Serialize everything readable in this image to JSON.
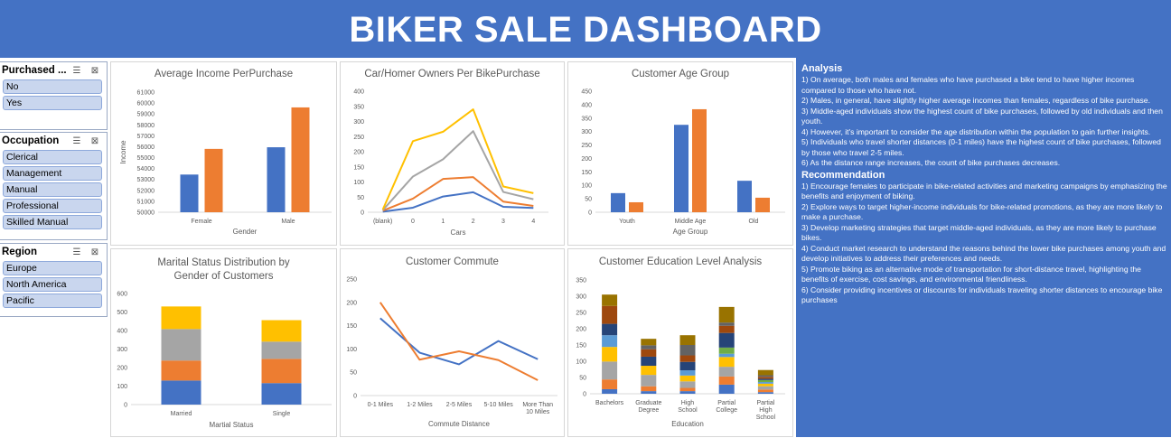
{
  "header": {
    "title": "BIKER SALE DASHBOARD"
  },
  "slicers": {
    "purchased": {
      "title": "Purchased ...",
      "items": [
        "No",
        "Yes"
      ]
    },
    "occupation": {
      "title": "Occupation",
      "items": [
        "Clerical",
        "Management",
        "Manual",
        "Professional",
        "Skilled Manual"
      ]
    },
    "region": {
      "title": "Region",
      "items": [
        "Europe",
        "North America",
        "Pacific"
      ]
    }
  },
  "colors": {
    "blue": "#4472c4",
    "orange": "#ed7d31",
    "gray": "#a5a5a5",
    "gold": "#ffc000"
  },
  "charts": {
    "income": {
      "title": "Average Income PerPurchase",
      "xlabel": "Gender",
      "ylabel": "Income"
    },
    "cars": {
      "title": "Car/Homer Owners Per BikePurchase",
      "xlabel": "Cars",
      "ylabel": ""
    },
    "age": {
      "title": "Customer Age Group",
      "xlabel": "Age Group",
      "ylabel": ""
    },
    "marital": {
      "title": "Marital Status Distribution by Gender of Customers",
      "xlabel": "Martial Status",
      "ylabel": ""
    },
    "commute": {
      "title": "Customer Commute",
      "xlabel": "Commute Distance",
      "ylabel": ""
    },
    "education": {
      "title": "Customer Education Level Analysis",
      "xlabel": "Education",
      "ylabel": ""
    }
  },
  "chart_data": [
    {
      "id": "income",
      "type": "bar",
      "categories": [
        "Female",
        "Male"
      ],
      "series": [
        {
          "values": [
            53450,
            55950
          ]
        },
        {
          "values": [
            55800,
            59600
          ]
        }
      ],
      "ylim": [
        50000,
        61000
      ],
      "yticks": [
        50000,
        51000,
        52000,
        53000,
        54000,
        55000,
        56000,
        57000,
        58000,
        59000,
        60000,
        61000
      ]
    },
    {
      "id": "cars",
      "type": "line",
      "categories": [
        "(blank)",
        "0",
        "1",
        "2",
        "3",
        "4"
      ],
      "series": [
        {
          "values": [
            2,
            15,
            52,
            66,
            18,
            14
          ]
        },
        {
          "values": [
            5,
            45,
            110,
            116,
            35,
            21
          ]
        },
        {
          "values": [
            7,
            118,
            175,
            268,
            67,
            43
          ]
        },
        {
          "values": [
            9,
            235,
            266,
            340,
            85,
            63
          ]
        }
      ],
      "ylim": [
        0,
        400
      ],
      "yticks": [
        0,
        50,
        100,
        150,
        200,
        250,
        300,
        350,
        400
      ]
    },
    {
      "id": "age",
      "type": "bar",
      "categories": [
        "Youth",
        "Middle Age",
        "Old"
      ],
      "series": [
        {
          "values": [
            71,
            325,
            117
          ]
        },
        {
          "values": [
            37,
            383,
            54
          ]
        }
      ],
      "ylim": [
        0,
        450
      ],
      "yticks": [
        0,
        50,
        100,
        150,
        200,
        250,
        300,
        350,
        400,
        450
      ]
    },
    {
      "id": "marital",
      "type": "bar",
      "stacked": true,
      "categories": [
        "Married",
        "Single"
      ],
      "series": [
        {
          "values": [
            130,
            116
          ]
        },
        {
          "values": [
            108,
            131
          ]
        },
        {
          "values": [
            170,
            93
          ]
        },
        {
          "values": [
            122,
            116
          ]
        }
      ],
      "ylim": [
        0,
        600
      ],
      "yticks": [
        0,
        100,
        200,
        300,
        400,
        500,
        600
      ]
    },
    {
      "id": "commute",
      "type": "line",
      "categories": [
        "0-1 Miles",
        "1-2 Miles",
        "2-5 Miles",
        "5-10 Miles",
        "More Than 10 Miles"
      ],
      "series": [
        {
          "values": [
            166,
            92,
            67,
            117,
            78
          ]
        },
        {
          "values": [
            200,
            77,
            95,
            76,
            33
          ]
        }
      ],
      "ylim": [
        0,
        250
      ],
      "yticks": [
        0,
        50,
        100,
        150,
        200,
        250
      ]
    },
    {
      "id": "education",
      "type": "bar",
      "stacked": true,
      "categories": [
        "Bachelors",
        "Graduate Degree",
        "High School",
        "Partial College",
        "Partial High School"
      ],
      "series": [
        {
          "values": [
            14,
            8,
            8,
            28,
            5
          ],
          "color": "#4472c4"
        },
        {
          "values": [
            30,
            15,
            10,
            25,
            8
          ],
          "color": "#ed7d31"
        },
        {
          "values": [
            55,
            35,
            20,
            30,
            10
          ],
          "color": "#a5a5a5"
        },
        {
          "values": [
            45,
            28,
            18,
            30,
            8
          ],
          "color": "#ffc000"
        },
        {
          "values": [
            36,
            0,
            16,
            10,
            5
          ],
          "color": "#5b9bd5"
        },
        {
          "values": [
            0,
            0,
            0,
            19,
            6
          ],
          "color": "#70ad47"
        },
        {
          "values": [
            35,
            28,
            26,
            45,
            4
          ],
          "color": "#264478"
        },
        {
          "values": [
            55,
            23,
            20,
            22,
            6
          ],
          "color": "#9e480e"
        },
        {
          "values": [
            0,
            12,
            32,
            10,
            5
          ],
          "color": "#636363"
        },
        {
          "values": [
            35,
            20,
            30,
            48,
            16
          ],
          "color": "#997300"
        }
      ],
      "ylim": [
        0,
        350
      ],
      "yticks": [
        0,
        50,
        100,
        150,
        200,
        250,
        300,
        350
      ]
    }
  ],
  "analysis": {
    "title": "Analysis",
    "lines": [
      "1) On average, both males and females who have purchased a bike tend to have higher incomes compared to those who have not.",
      "2) Males, in general, have slightly higher average incomes than females, regardless of bike purchase.",
      "3) Middle-aged individuals show the highest count of bike purchases, followed by old individuals and then youth.",
      "4) However, it's important to consider the age distribution within the population to gain further insights.",
      "5) Individuals who travel shorter distances (0-1 miles) have the highest count of bike purchases, followed by those who travel 2-5 miles.",
      "6) As the distance range increases, the count of bike purchases decreases."
    ]
  },
  "recommendation": {
    "title": "Recommendation",
    "lines": [
      "1) Encourage females to participate in bike-related activities and marketing campaigns by emphasizing the benefits and enjoyment of biking.",
      "2) Explore ways to target higher-income individuals for bike-related promotions, as they are more likely to make a purchase.",
      "3) Develop marketing strategies that target middle-aged individuals, as they are more likely to purchase bikes.",
      "4) Conduct market research to understand the reasons behind the lower bike purchases among youth and develop initiatives to address their preferences and needs.",
      "5) Promote biking as an alternative mode of transportation for short-distance travel, highlighting the benefits of exercise, cost savings, and environmental friendliness.",
      "6) Consider providing incentives or discounts for individuals traveling shorter distances to encourage bike purchases"
    ]
  }
}
